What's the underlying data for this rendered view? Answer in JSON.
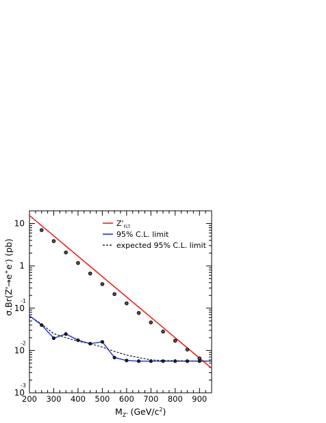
{
  "chart_data": {
    "type": "line",
    "xlabel": "M",
    "xlabel_sub": "Z'",
    "xlabel_rest": " (GeV/c",
    "xlabel_sup": "2",
    "xlabel_end": ")",
    "ylabel_main": "σ.Br(Z'",
    "ylabel_arrow": "→",
    "ylabel_e1": "e",
    "ylabel_sup1": "+",
    "ylabel_e2": "e",
    "ylabel_sup2": "-",
    "ylabel_end": ") (pb)",
    "xlim": [
      200,
      950
    ],
    "ylim": [
      0.001,
      20
    ],
    "yscale": "log",
    "x_ticks": [
      200,
      300,
      400,
      500,
      600,
      700,
      800,
      900
    ],
    "y_tick_labels": [
      {
        "value": 10,
        "base": "10",
        "exp": ""
      },
      {
        "value": 1,
        "base": "1",
        "exp": ""
      },
      {
        "value": 0.1,
        "base": "10",
        "exp": "-1"
      },
      {
        "value": 0.01,
        "base": "10",
        "exp": "-2"
      },
      {
        "value": 0.001,
        "base": "10",
        "exp": "-3"
      }
    ],
    "legend_position": "top-right",
    "series": [
      {
        "name": "Z'",
        "name_sub": "FLT",
        "color": "#e8201b",
        "style": "solid",
        "line_x": [
          200,
          950
        ],
        "line_y": [
          15.5,
          0.0038
        ],
        "x": [
          250,
          300,
          350,
          400,
          450,
          500,
          550,
          600,
          650,
          700,
          750,
          800,
          850,
          900
        ],
        "values": [
          7.0,
          3.85,
          2.07,
          1.17,
          0.66,
          0.37,
          0.215,
          0.13,
          0.077,
          0.046,
          0.028,
          0.017,
          0.0105,
          0.0065
        ]
      },
      {
        "name": "95% C.L. limit",
        "color": "#1f2fd0",
        "style": "solid",
        "x": [
          200,
          250,
          300,
          350,
          400,
          450,
          500,
          550,
          600,
          650,
          700,
          750,
          800,
          850,
          900,
          950
        ],
        "values": [
          0.066,
          0.04,
          0.0195,
          0.0245,
          0.0175,
          0.0145,
          0.016,
          0.0068,
          0.0058,
          0.0056,
          0.0056,
          0.0056,
          0.0056,
          0.0056,
          0.0056,
          0.0056
        ]
      },
      {
        "name": "expected 95% C.L. limit",
        "color": "#000000",
        "style": "dashed",
        "x": [
          200,
          250,
          300,
          350,
          400,
          450,
          500,
          550,
          600,
          650,
          700,
          750,
          950
        ],
        "values": [
          0.066,
          0.042,
          0.025,
          0.02,
          0.0165,
          0.0145,
          0.012,
          0.0095,
          0.0078,
          0.0068,
          0.006,
          0.0058,
          0.0056
        ]
      }
    ]
  }
}
